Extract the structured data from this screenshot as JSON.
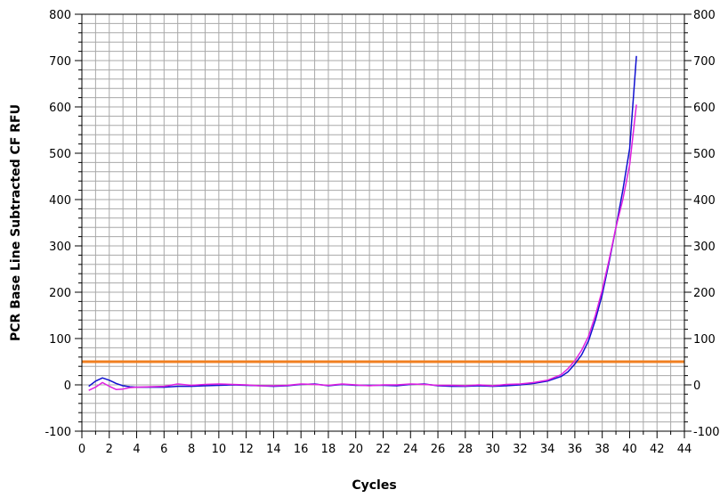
{
  "chart_data": {
    "type": "line",
    "title": "",
    "xlabel": "Cycles",
    "ylabel": "PCR Base Line Subtracted CF RFU",
    "xlim": [
      0,
      44
    ],
    "ylim": [
      -100,
      800
    ],
    "x_major_ticks": [
      0,
      2,
      4,
      6,
      8,
      10,
      12,
      14,
      16,
      18,
      20,
      22,
      24,
      26,
      28,
      30,
      32,
      34,
      36,
      38,
      40,
      42,
      44
    ],
    "x_tick_labels": [
      "0",
      "2",
      "4",
      "6",
      "8",
      "10",
      "12",
      "14",
      "16",
      "18",
      "20",
      "22",
      "24",
      "26",
      "28",
      "30",
      "32",
      "34",
      "36",
      "38",
      "40",
      "42",
      "44"
    ],
    "x_minor_step": 1,
    "y_major_ticks": [
      -100,
      0,
      100,
      200,
      300,
      400,
      500,
      600,
      700,
      800
    ],
    "y_tick_labels": [
      "-100",
      "0",
      "100",
      "200",
      "300",
      "400",
      "500",
      "600",
      "700",
      "800"
    ],
    "y_minor_step": 20,
    "right_axis_labels": true,
    "grid": true,
    "threshold": {
      "value": 50,
      "color": "#f07f20"
    },
    "series": [
      {
        "color": "#1010d0",
        "x": [
          0.5,
          1,
          1.5,
          2,
          2.5,
          3,
          3.5,
          4,
          5,
          6,
          7,
          8,
          9,
          10,
          11,
          12,
          13,
          14,
          15,
          16,
          17,
          18,
          19,
          20,
          21,
          22,
          23,
          24,
          25,
          26,
          27,
          28,
          29,
          30,
          31,
          32,
          33,
          34,
          35,
          35.5,
          36,
          36.5,
          37,
          37.5,
          38,
          38.5,
          39,
          39.5,
          40,
          40.5
        ],
        "y": [
          -3,
          8,
          15,
          10,
          3,
          -2,
          -4,
          -5,
          -5,
          -5,
          -3,
          -3,
          -2,
          -1,
          0,
          -1,
          -2,
          -3,
          -2,
          1,
          2,
          -2,
          1,
          -1,
          -1,
          -1,
          -2,
          1,
          2,
          -2,
          -3,
          -3,
          -2,
          -3,
          -2,
          0,
          3,
          8,
          18,
          28,
          45,
          65,
          95,
          140,
          195,
          265,
          340,
          420,
          510,
          710
        ]
      },
      {
        "color": "#e020e0",
        "x": [
          0.5,
          1,
          1.5,
          2,
          2.5,
          3,
          3.5,
          4,
          5,
          6,
          7,
          8,
          9,
          10,
          11,
          12,
          13,
          14,
          15,
          16,
          17,
          18,
          19,
          20,
          21,
          22,
          23,
          24,
          25,
          26,
          27,
          28,
          29,
          30,
          31,
          32,
          33,
          34,
          35,
          35.5,
          36,
          36.5,
          37,
          37.5,
          38,
          38.5,
          39,
          39.5,
          40,
          40.5
        ],
        "y": [
          -12,
          -5,
          5,
          -3,
          -10,
          -9,
          -6,
          -5,
          -4,
          -3,
          2,
          -1,
          1,
          2,
          1,
          0,
          -2,
          -2,
          -1,
          2,
          1,
          -1,
          2,
          0,
          -2,
          0,
          0,
          2,
          1,
          -1,
          -1,
          -2,
          0,
          -2,
          1,
          2,
          5,
          10,
          22,
          35,
          52,
          75,
          105,
          150,
          205,
          270,
          340,
          400,
          475,
          605
        ]
      }
    ]
  }
}
